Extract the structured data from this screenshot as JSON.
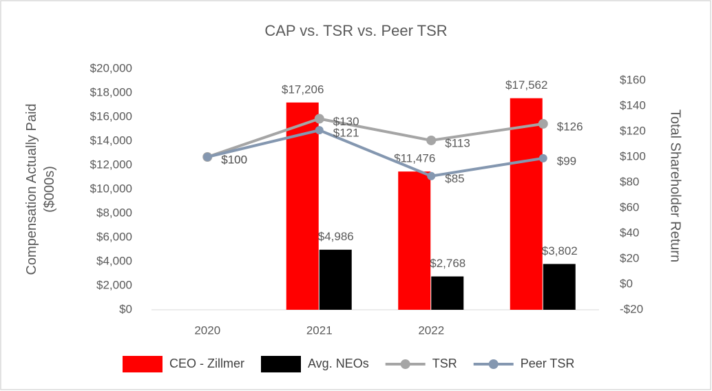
{
  "chart_data": {
    "type": "bar-line",
    "title": "CAP vs. TSR vs. Peer TSR",
    "y_label": "Compensation Actually Paid ($000s)",
    "y2_label": "Total Shareholder Return",
    "categories": [
      "2020",
      "2021",
      "2022",
      null
    ],
    "series": [
      {
        "name": "CEO - Zillmer",
        "type": "bar",
        "color": "#ff0000",
        "values": [
          null,
          17206,
          11476,
          17562
        ],
        "value_labels": [
          null,
          "$17,206",
          "$11,476",
          "$17,562"
        ]
      },
      {
        "name": "Avg. NEOs",
        "type": "bar",
        "color": "#000000",
        "values": [
          null,
          4986,
          2768,
          3802
        ],
        "value_labels": [
          null,
          "$4,986",
          "$2,768",
          "$3,802"
        ]
      },
      {
        "name": "TSR",
        "type": "line",
        "axis": "y2",
        "color": "#a5a5a5",
        "values": [
          100,
          130,
          113,
          126
        ],
        "value_labels": [
          "$100",
          "$130",
          "$113",
          "$126"
        ]
      },
      {
        "name": "Peer TSR",
        "type": "line",
        "axis": "y2",
        "color": "#8497b0",
        "values": [
          100,
          121,
          85,
          99
        ],
        "value_labels": [
          "$100",
          "$121",
          "$85",
          "$99"
        ]
      }
    ],
    "ylim": [
      0,
      20000
    ],
    "yticks": [
      {
        "value": 0,
        "label": "$0"
      },
      {
        "value": 2000,
        "label": "$2,000"
      },
      {
        "value": 4000,
        "label": "$4,000"
      },
      {
        "value": 6000,
        "label": "$6,000"
      },
      {
        "value": 8000,
        "label": "$8,000"
      },
      {
        "value": 10000,
        "label": "$10,000"
      },
      {
        "value": 12000,
        "label": "$12,000"
      },
      {
        "value": 14000,
        "label": "$14,000"
      },
      {
        "value": 16000,
        "label": "$16,000"
      },
      {
        "value": 18000,
        "label": "$18,000"
      },
      {
        "value": 20000,
        "label": "$20,000"
      }
    ],
    "y2lim": [
      -20,
      160
    ],
    "y2ticks": [
      {
        "value": -20,
        "label": "-$20"
      },
      {
        "value": 0,
        "label": "$0"
      },
      {
        "value": 20,
        "label": "$20"
      },
      {
        "value": 40,
        "label": "$40"
      },
      {
        "value": 60,
        "label": "$60"
      },
      {
        "value": 80,
        "label": "$80"
      },
      {
        "value": 100,
        "label": "$100"
      },
      {
        "value": 120,
        "label": "$120"
      },
      {
        "value": 140,
        "label": "$140"
      },
      {
        "value": 160,
        "label": "$160"
      }
    ],
    "legend": "bottom"
  }
}
